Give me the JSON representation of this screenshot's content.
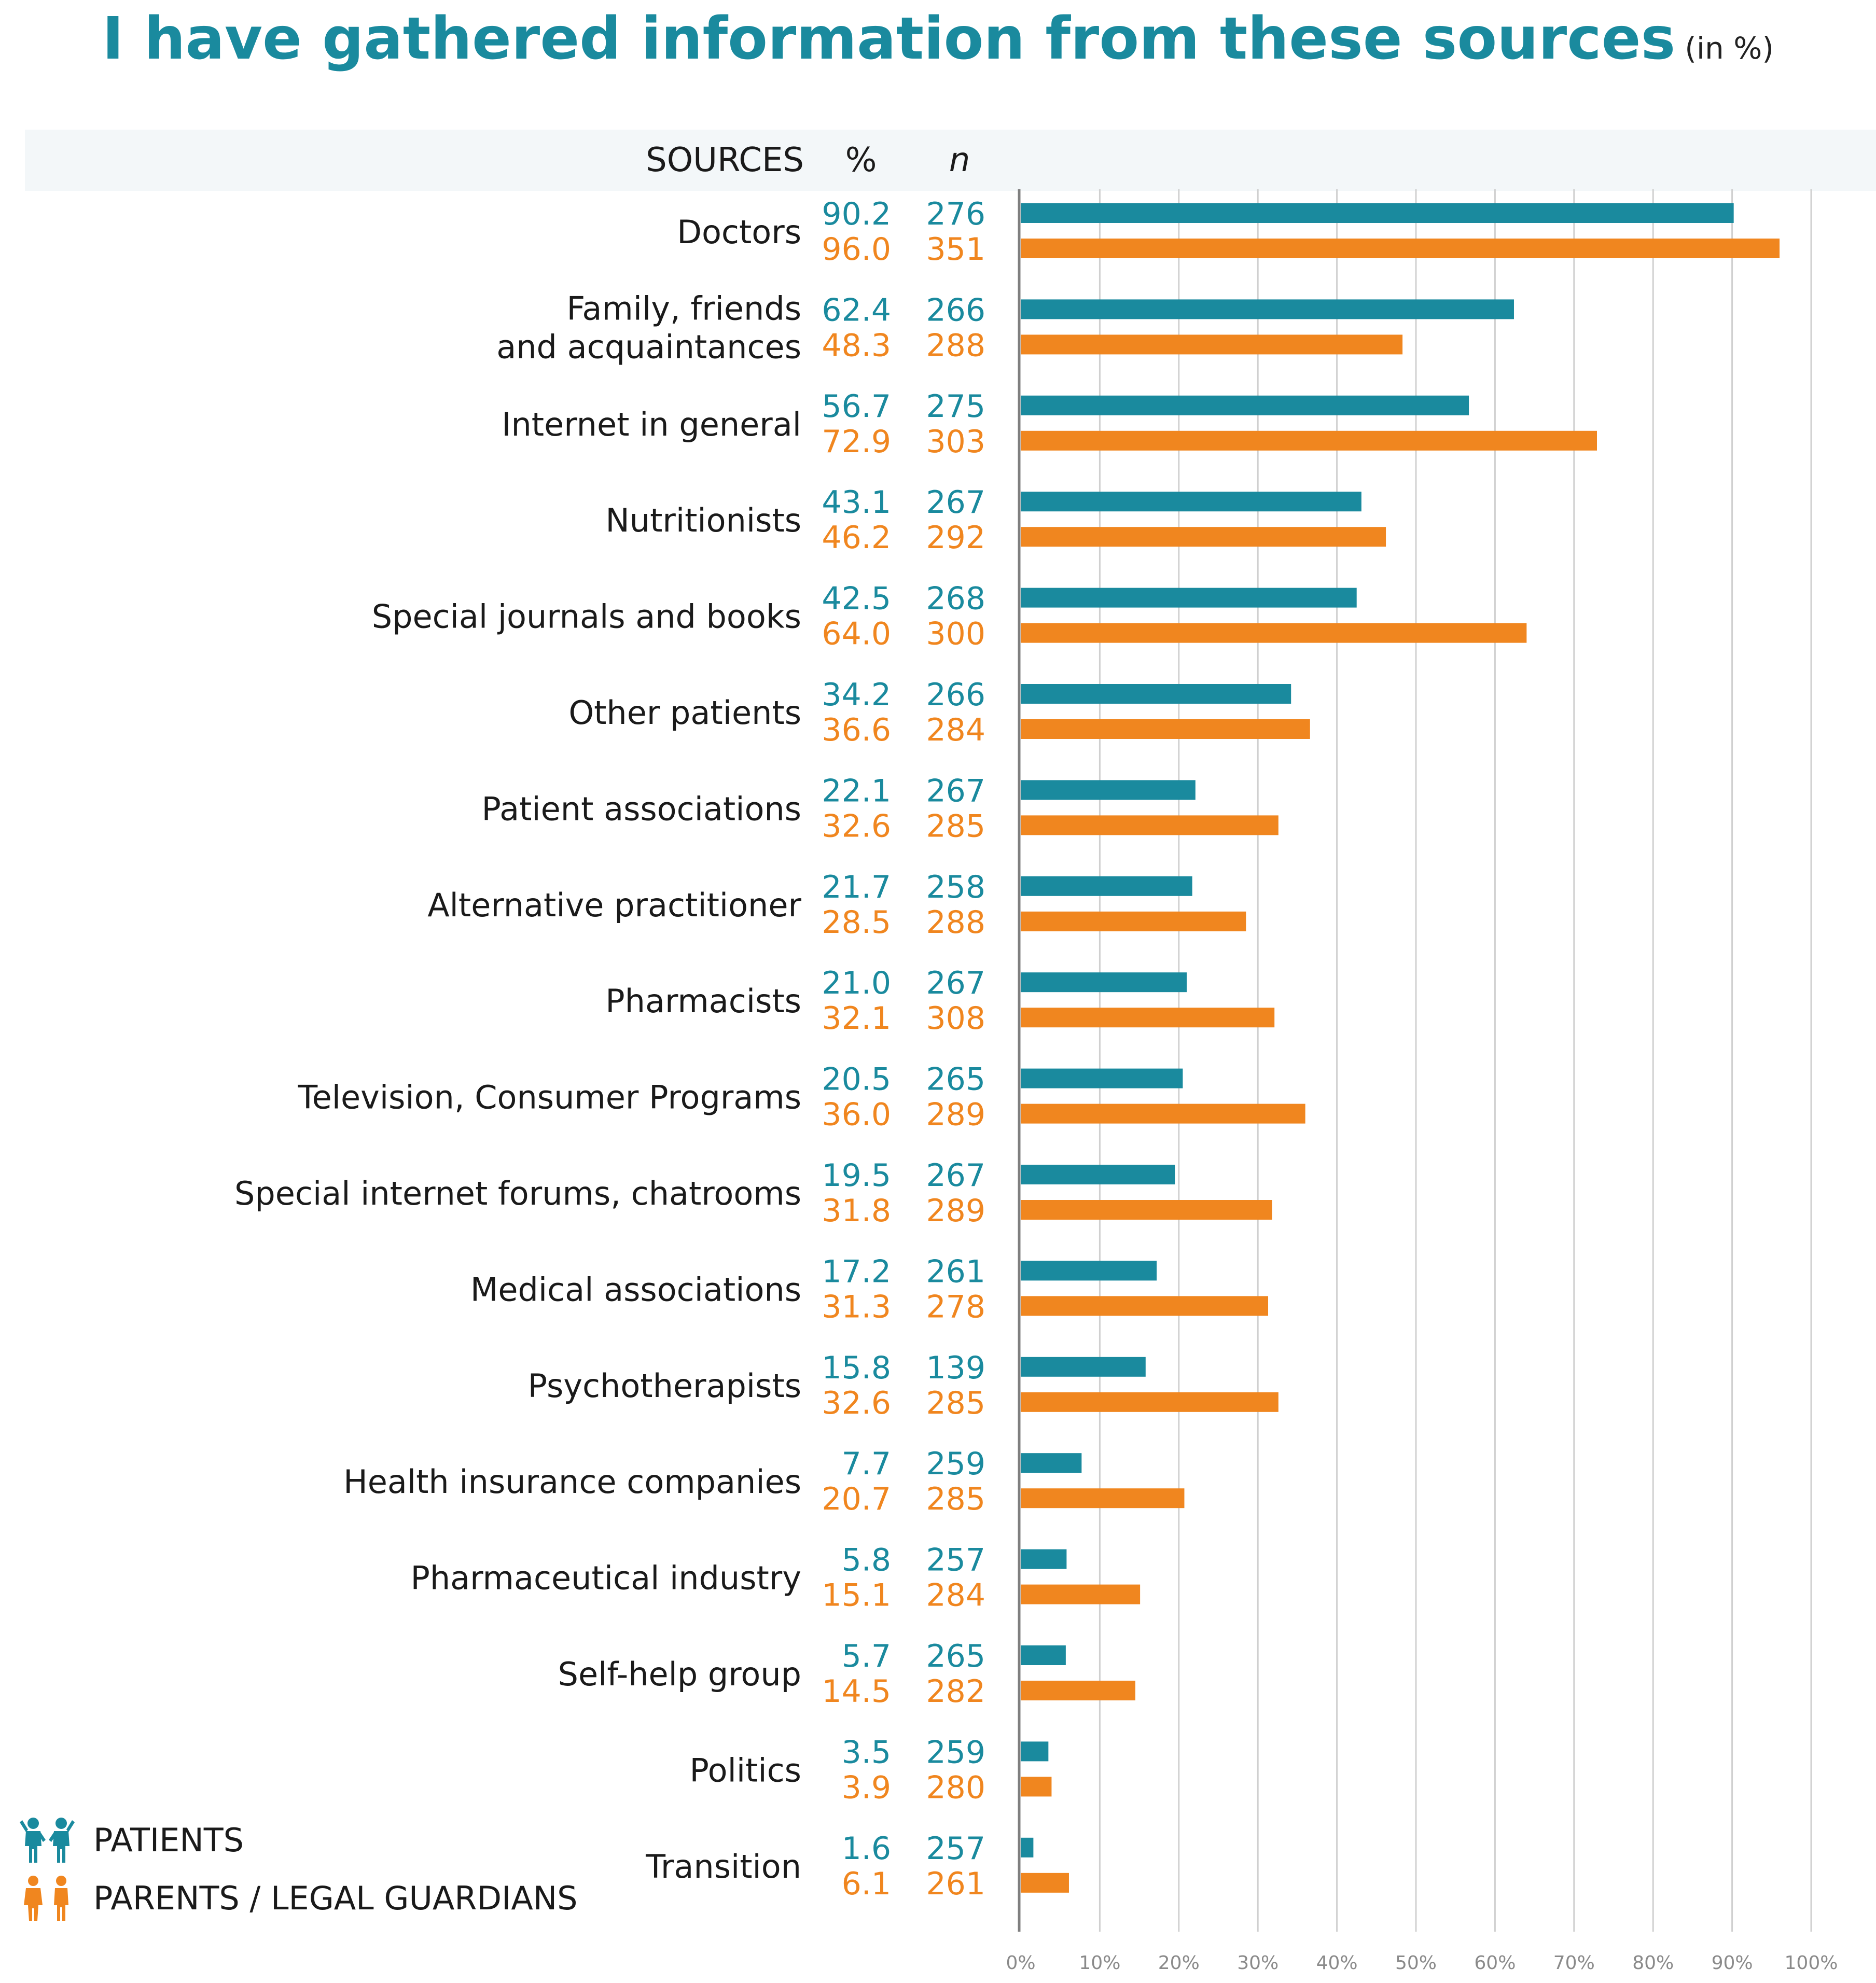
{
  "colors": {
    "patients": "#1a8a9e",
    "parents": "#f0861f",
    "title": "#1a8a9e",
    "grid": "#d0d0d0",
    "axis": "#7f7f7f",
    "tick_label": "#8a8a8a"
  },
  "header": {
    "sources": "SOURCES",
    "percent": "%",
    "n": "n"
  },
  "legend": {
    "patients_label": "PATIENTS",
    "parents_label": "PARENTS / LEGAL GUARDIANS",
    "patients_icon": "two-children-icon",
    "parents_icon": "two-adults-icon"
  },
  "chart_data": {
    "type": "bar",
    "orientation": "horizontal",
    "title": "I have gathered information from these sources",
    "title_unit": "(in %)",
    "xlim": [
      0,
      100
    ],
    "xticks": [
      "0%",
      "10%",
      "20%",
      "30%",
      "40%",
      "50%",
      "60%",
      "70%",
      "80%",
      "90%",
      "100%"
    ],
    "grid": true,
    "legend_position": "bottom-left",
    "categories": [
      [
        "Doctors"
      ],
      [
        "Family, friends",
        "and acquaintances"
      ],
      [
        "Internet in general"
      ],
      [
        "Nutritionists"
      ],
      [
        "Special journals and  books"
      ],
      [
        "Other patients"
      ],
      [
        "Patient associations"
      ],
      [
        "Alternative practitioner"
      ],
      [
        "Pharmacists"
      ],
      [
        "Television, Consumer Programs"
      ],
      [
        "Special internet forums, chatrooms"
      ],
      [
        "Medical associations"
      ],
      [
        "Psychotherapists"
      ],
      [
        "Health insurance companies"
      ],
      [
        "Pharmaceutical industry"
      ],
      [
        "Self-help group"
      ],
      [
        "Politics"
      ],
      [
        "Transition"
      ]
    ],
    "series": [
      {
        "name": "PATIENTS",
        "values": [
          90.2,
          62.4,
          56.7,
          43.1,
          42.5,
          34.2,
          22.1,
          21.7,
          21.0,
          20.5,
          19.5,
          17.2,
          15.8,
          7.7,
          5.8,
          5.7,
          3.5,
          1.6
        ],
        "labels": [
          "90.2",
          "62.4",
          "56.7",
          "43.1",
          "42.5",
          "34.2",
          "22.1",
          "21.7",
          "21.0",
          "20.5",
          "19.5",
          "17.2",
          "15.8",
          "7.7",
          "5.8",
          "5.7",
          "3.5",
          "1.6"
        ],
        "n": [
          "276",
          "266",
          "275",
          "267",
          "268",
          "266",
          "267",
          "258",
          "267",
          "265",
          "267",
          "261",
          "139",
          "259",
          "257",
          "265",
          "259",
          "257"
        ]
      },
      {
        "name": "PARENTS / LEGAL GUARDIANS",
        "values": [
          96.0,
          48.3,
          72.9,
          46.2,
          64.0,
          36.6,
          32.6,
          28.5,
          32.1,
          36.0,
          31.8,
          31.3,
          32.6,
          20.7,
          15.1,
          14.5,
          3.9,
          6.1
        ],
        "labels": [
          "96.0",
          "48.3",
          "72.9",
          "46.2",
          "64.0",
          "36.6",
          "32.6",
          "28.5",
          "32.1",
          "36.0",
          "31.8",
          "31.3",
          "32.6",
          "20.7",
          "15.1",
          "14.5",
          "3.9",
          "6.1"
        ],
        "n": [
          "351",
          "288",
          "303",
          "292",
          "300",
          "284",
          "285",
          "288",
          "308",
          "289",
          "289",
          "278",
          "285",
          "285",
          "284",
          "282",
          "280",
          "261"
        ]
      }
    ]
  }
}
